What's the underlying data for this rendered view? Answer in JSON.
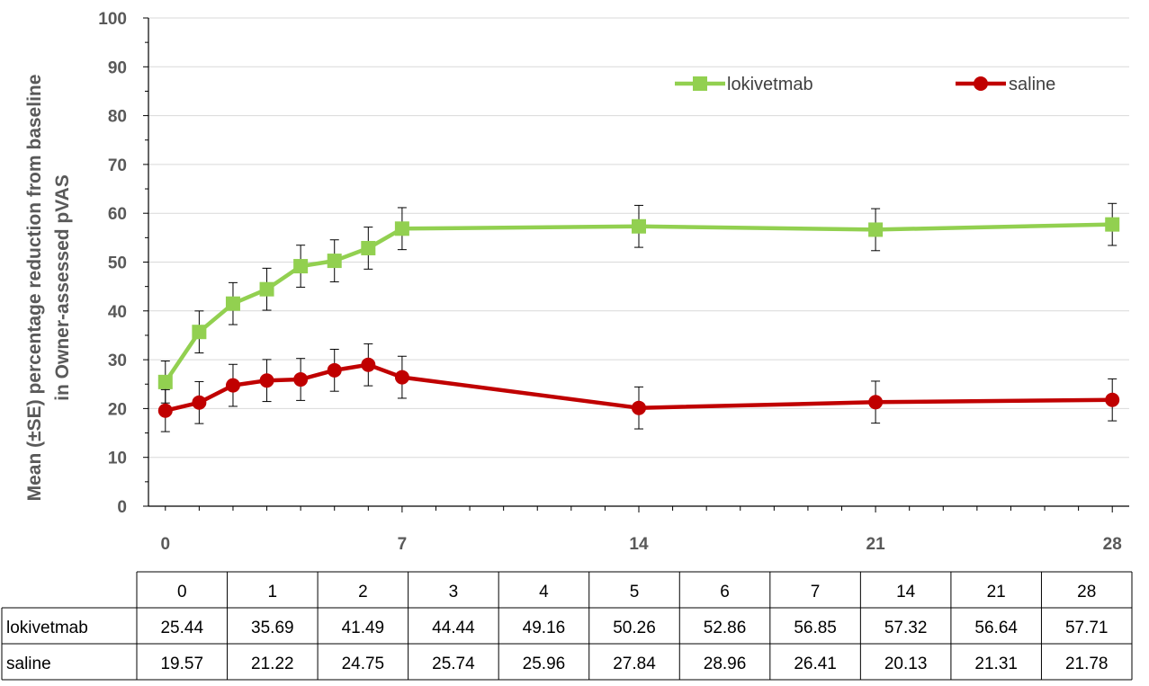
{
  "chart_data": {
    "type": "line",
    "ylabel_lines": [
      "Mean (±SE) percentage reduction from baseline",
      "in Owner-assessed pVAS"
    ],
    "ylim": [
      0,
      100
    ],
    "yticks": [
      0,
      10,
      20,
      30,
      40,
      50,
      60,
      70,
      80,
      90,
      100
    ],
    "xlim": [
      -0.5,
      28.5
    ],
    "xticks": [
      0,
      7,
      14,
      21,
      28
    ],
    "xticks_labels": [
      "0",
      "7",
      "14",
      "21",
      "28"
    ],
    "legend_position": "top-right",
    "x": [
      0,
      1,
      2,
      3,
      4,
      5,
      6,
      7,
      14,
      21,
      28
    ],
    "x_plot": [
      0,
      1,
      2,
      3,
      4,
      5,
      6,
      7,
      14,
      21,
      28
    ],
    "series": [
      {
        "name": "lokivetmab",
        "color": "#92d050",
        "marker": "square",
        "values": [
          25.44,
          35.69,
          41.49,
          44.44,
          49.16,
          50.26,
          52.86,
          56.85,
          57.32,
          56.64,
          57.71
        ],
        "se": [
          4.3,
          4.3,
          4.3,
          4.3,
          4.3,
          4.3,
          4.3,
          4.3,
          4.3,
          4.3,
          4.3
        ]
      },
      {
        "name": "saline",
        "color": "#c00000",
        "marker": "circle",
        "values": [
          19.57,
          21.22,
          24.75,
          25.74,
          25.96,
          27.84,
          28.96,
          26.41,
          20.13,
          21.31,
          21.78
        ],
        "se": [
          4.3,
          4.3,
          4.3,
          4.3,
          4.3,
          4.3,
          4.3,
          4.3,
          4.3,
          4.3,
          4.3
        ]
      }
    ],
    "table": {
      "header": [
        "0",
        "1",
        "2",
        "3",
        "4",
        "5",
        "6",
        "7",
        "14",
        "21",
        "28"
      ],
      "rows": [
        {
          "label": "lokivetmab",
          "values": [
            "25.44",
            "35.69",
            "41.49",
            "44.44",
            "49.16",
            "50.26",
            "52.86",
            "56.85",
            "57.32",
            "56.64",
            "57.71"
          ]
        },
        {
          "label": "saline",
          "values": [
            "19.57",
            "21.22",
            "24.75",
            "25.74",
            "25.96",
            "27.84",
            "28.96",
            "26.41",
            "20.13",
            "21.31",
            "21.78"
          ]
        }
      ]
    }
  }
}
